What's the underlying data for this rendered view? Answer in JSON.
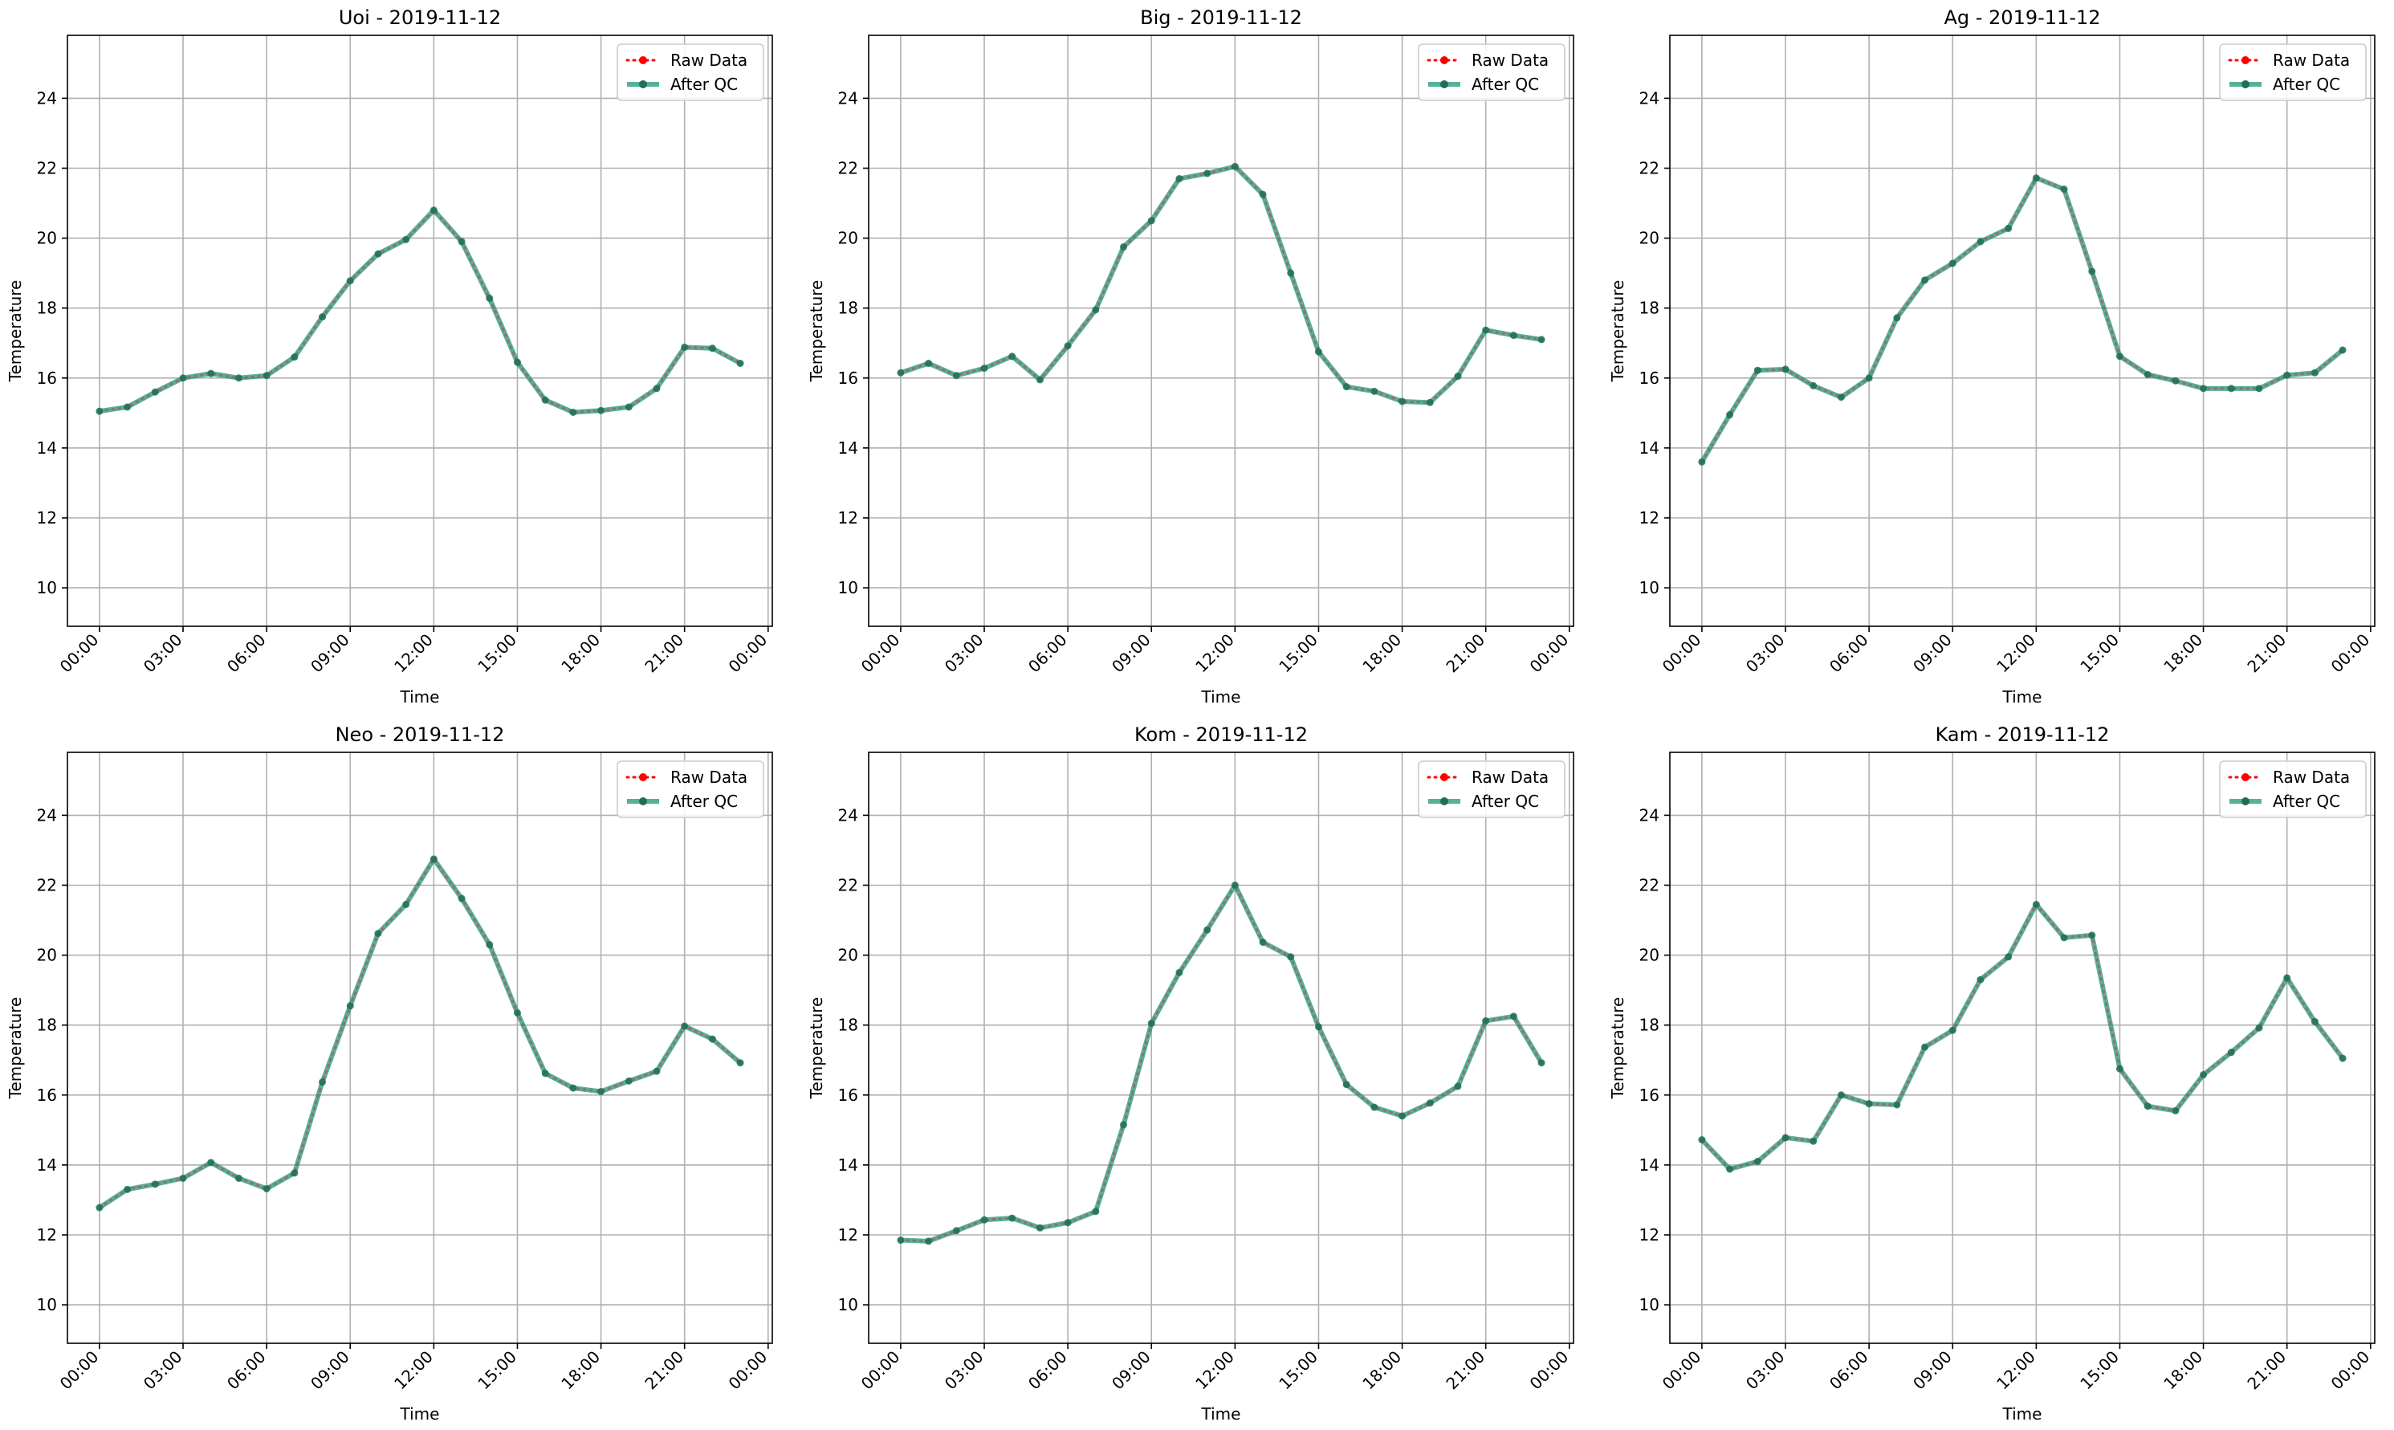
{
  "figure": {
    "colors": {
      "raw": "#ff0000",
      "qc": "#2a9d7f",
      "grid": "#b0b0b0",
      "frame": "#000000"
    },
    "legend_labels": {
      "raw": "Raw Data",
      "qc": "After QC"
    },
    "legend_position": "upper right",
    "grid": true
  },
  "chart_data": [
    {
      "type": "line",
      "title": "Uoi - 2019-11-12",
      "xlabel": "Time",
      "ylabel": "Temperature",
      "ylim": [
        8.9,
        25.8
      ],
      "yticks": [
        10,
        12,
        14,
        16,
        18,
        20,
        22,
        24
      ],
      "xlim": [
        -1.15,
        24.15
      ],
      "xticks": [
        "00:00",
        "03:00",
        "06:00",
        "09:00",
        "12:00",
        "15:00",
        "18:00",
        "21:00",
        "00:00"
      ],
      "x": [
        "00:00",
        "01:00",
        "02:00",
        "03:00",
        "04:00",
        "05:00",
        "06:00",
        "07:00",
        "08:00",
        "09:00",
        "10:00",
        "11:00",
        "12:00",
        "13:00",
        "14:00",
        "15:00",
        "16:00",
        "17:00",
        "18:00",
        "19:00",
        "20:00",
        "21:00",
        "22:00",
        "23:00"
      ],
      "legend": [
        "Raw Data",
        "After QC"
      ],
      "series": [
        {
          "name": "Raw Data",
          "values": [
            15.05,
            15.17,
            15.6,
            16.0,
            16.13,
            16.0,
            16.07,
            16.6,
            17.75,
            18.78,
            19.55,
            19.96,
            20.8,
            19.9,
            18.28,
            16.45,
            15.37,
            15.02,
            15.07,
            15.17,
            15.7,
            16.88,
            16.85,
            16.42
          ]
        },
        {
          "name": "After QC",
          "values": [
            15.05,
            15.17,
            15.6,
            16.0,
            16.13,
            16.0,
            16.07,
            16.6,
            17.75,
            18.78,
            19.55,
            19.96,
            20.8,
            19.9,
            18.28,
            16.45,
            15.37,
            15.02,
            15.07,
            15.17,
            15.7,
            16.88,
            16.85,
            16.42
          ]
        }
      ]
    },
    {
      "type": "line",
      "title": "Big - 2019-11-12",
      "xlabel": "Time",
      "ylabel": "Temperature",
      "ylim": [
        8.9,
        25.8
      ],
      "yticks": [
        10,
        12,
        14,
        16,
        18,
        20,
        22,
        24
      ],
      "xlim": [
        -1.15,
        24.15
      ],
      "xticks": [
        "00:00",
        "03:00",
        "06:00",
        "09:00",
        "12:00",
        "15:00",
        "18:00",
        "21:00",
        "00:00"
      ],
      "x": [
        "00:00",
        "01:00",
        "02:00",
        "03:00",
        "04:00",
        "05:00",
        "06:00",
        "07:00",
        "08:00",
        "09:00",
        "10:00",
        "11:00",
        "12:00",
        "13:00",
        "14:00",
        "15:00",
        "16:00",
        "17:00",
        "18:00",
        "19:00",
        "20:00",
        "21:00",
        "22:00",
        "23:00"
      ],
      "legend": [
        "Raw Data",
        "After QC"
      ],
      "series": [
        {
          "name": "Raw Data",
          "values": [
            16.15,
            16.42,
            16.07,
            16.28,
            16.62,
            15.95,
            16.92,
            17.95,
            19.75,
            20.5,
            21.7,
            21.85,
            22.05,
            21.25,
            19.0,
            16.75,
            15.75,
            15.62,
            15.33,
            15.3,
            16.05,
            17.37,
            17.22,
            17.1
          ]
        },
        {
          "name": "After QC",
          "values": [
            16.15,
            16.42,
            16.07,
            16.28,
            16.62,
            15.95,
            16.92,
            17.95,
            19.75,
            20.5,
            21.7,
            21.85,
            22.05,
            21.25,
            19.0,
            16.75,
            15.75,
            15.62,
            15.33,
            15.3,
            16.05,
            17.37,
            17.22,
            17.1
          ]
        }
      ]
    },
    {
      "type": "line",
      "title": "Ag - 2019-11-12",
      "xlabel": "Time",
      "ylabel": "Temperature",
      "ylim": [
        8.9,
        25.8
      ],
      "yticks": [
        10,
        12,
        14,
        16,
        18,
        20,
        22,
        24
      ],
      "xlim": [
        -1.15,
        24.15
      ],
      "xticks": [
        "00:00",
        "03:00",
        "06:00",
        "09:00",
        "12:00",
        "15:00",
        "18:00",
        "21:00",
        "00:00"
      ],
      "x": [
        "00:00",
        "01:00",
        "02:00",
        "03:00",
        "04:00",
        "05:00",
        "06:00",
        "07:00",
        "08:00",
        "09:00",
        "10:00",
        "11:00",
        "12:00",
        "13:00",
        "14:00",
        "15:00",
        "16:00",
        "17:00",
        "18:00",
        "19:00",
        "20:00",
        "21:00",
        "22:00",
        "23:00"
      ],
      "legend": [
        "Raw Data",
        "After QC"
      ],
      "series": [
        {
          "name": "Raw Data",
          "values": [
            13.6,
            14.95,
            16.22,
            16.25,
            15.78,
            15.45,
            16.0,
            17.72,
            18.8,
            19.28,
            19.9,
            20.28,
            21.72,
            21.4,
            19.05,
            16.62,
            16.1,
            15.92,
            15.7,
            15.7,
            15.7,
            16.08,
            16.15,
            16.8
          ]
        },
        {
          "name": "After QC",
          "values": [
            13.6,
            14.95,
            16.22,
            16.25,
            15.78,
            15.45,
            16.0,
            17.72,
            18.8,
            19.28,
            19.9,
            20.28,
            21.72,
            21.4,
            19.05,
            16.62,
            16.1,
            15.92,
            15.7,
            15.7,
            15.7,
            16.08,
            16.15,
            16.8
          ]
        }
      ]
    },
    {
      "type": "line",
      "title": "Neo - 2019-11-12",
      "xlabel": "Time",
      "ylabel": "Temperature",
      "ylim": [
        8.9,
        25.8
      ],
      "yticks": [
        10,
        12,
        14,
        16,
        18,
        20,
        22,
        24
      ],
      "xlim": [
        -1.15,
        24.15
      ],
      "xticks": [
        "00:00",
        "03:00",
        "06:00",
        "09:00",
        "12:00",
        "15:00",
        "18:00",
        "21:00",
        "00:00"
      ],
      "x": [
        "00:00",
        "01:00",
        "02:00",
        "03:00",
        "04:00",
        "05:00",
        "06:00",
        "07:00",
        "08:00",
        "09:00",
        "10:00",
        "11:00",
        "12:00",
        "13:00",
        "14:00",
        "15:00",
        "16:00",
        "17:00",
        "18:00",
        "19:00",
        "20:00",
        "21:00",
        "22:00",
        "23:00"
      ],
      "legend": [
        "Raw Data",
        "After QC"
      ],
      "series": [
        {
          "name": "Raw Data",
          "values": [
            12.78,
            13.3,
            13.45,
            13.62,
            14.07,
            13.62,
            13.32,
            13.77,
            16.37,
            18.55,
            20.62,
            21.45,
            22.75,
            21.62,
            20.3,
            18.35,
            16.62,
            16.2,
            16.1,
            16.4,
            16.68,
            17.97,
            17.6,
            16.92
          ]
        },
        {
          "name": "After QC",
          "values": [
            12.78,
            13.3,
            13.45,
            13.62,
            14.07,
            13.62,
            13.32,
            13.77,
            16.37,
            18.55,
            20.62,
            21.45,
            22.75,
            21.62,
            20.3,
            18.35,
            16.62,
            16.2,
            16.1,
            16.4,
            16.68,
            17.97,
            17.6,
            16.92
          ]
        }
      ]
    },
    {
      "type": "line",
      "title": "Kom - 2019-11-12",
      "xlabel": "Time",
      "ylabel": "Temperature",
      "ylim": [
        8.9,
        25.8
      ],
      "yticks": [
        10,
        12,
        14,
        16,
        18,
        20,
        22,
        24
      ],
      "xlim": [
        -1.15,
        24.15
      ],
      "xticks": [
        "00:00",
        "03:00",
        "06:00",
        "09:00",
        "12:00",
        "15:00",
        "18:00",
        "21:00",
        "00:00"
      ],
      "x": [
        "00:00",
        "01:00",
        "02:00",
        "03:00",
        "04:00",
        "05:00",
        "06:00",
        "07:00",
        "08:00",
        "09:00",
        "10:00",
        "11:00",
        "12:00",
        "13:00",
        "14:00",
        "15:00",
        "16:00",
        "17:00",
        "18:00",
        "19:00",
        "20:00",
        "21:00",
        "22:00",
        "23:00"
      ],
      "legend": [
        "Raw Data",
        "After QC"
      ],
      "series": [
        {
          "name": "Raw Data",
          "values": [
            11.85,
            11.82,
            12.12,
            12.43,
            12.48,
            12.2,
            12.35,
            12.67,
            15.15,
            18.05,
            19.5,
            20.72,
            22.0,
            20.37,
            19.95,
            17.95,
            16.3,
            15.65,
            15.4,
            15.77,
            16.25,
            18.12,
            18.25,
            16.92
          ]
        },
        {
          "name": "After QC",
          "values": [
            11.85,
            11.82,
            12.12,
            12.43,
            12.48,
            12.2,
            12.35,
            12.67,
            15.15,
            18.05,
            19.5,
            20.72,
            22.0,
            20.37,
            19.95,
            17.95,
            16.3,
            15.65,
            15.4,
            15.77,
            16.25,
            18.12,
            18.25,
            16.92
          ]
        }
      ]
    },
    {
      "type": "line",
      "title": "Kam - 2019-11-12",
      "xlabel": "Time",
      "ylabel": "Temperature",
      "ylim": [
        8.9,
        25.8
      ],
      "yticks": [
        10,
        12,
        14,
        16,
        18,
        20,
        22,
        24
      ],
      "xlim": [
        -1.15,
        24.15
      ],
      "xticks": [
        "00:00",
        "03:00",
        "06:00",
        "09:00",
        "12:00",
        "15:00",
        "18:00",
        "21:00",
        "00:00"
      ],
      "x": [
        "00:00",
        "01:00",
        "02:00",
        "03:00",
        "04:00",
        "05:00",
        "06:00",
        "07:00",
        "08:00",
        "09:00",
        "10:00",
        "11:00",
        "12:00",
        "13:00",
        "14:00",
        "15:00",
        "16:00",
        "17:00",
        "18:00",
        "19:00",
        "20:00",
        "21:00",
        "22:00",
        "23:00"
      ],
      "legend": [
        "Raw Data",
        "After QC"
      ],
      "series": [
        {
          "name": "Raw Data",
          "values": [
            14.72,
            13.88,
            14.1,
            14.78,
            14.68,
            16.0,
            15.75,
            15.72,
            17.37,
            17.85,
            19.3,
            19.95,
            21.45,
            20.5,
            20.57,
            16.75,
            15.68,
            15.55,
            16.58,
            17.22,
            17.92,
            19.35,
            18.1,
            17.05
          ]
        },
        {
          "name": "After QC",
          "values": [
            14.72,
            13.88,
            14.1,
            14.78,
            14.68,
            16.0,
            15.75,
            15.72,
            17.37,
            17.85,
            19.3,
            19.95,
            21.45,
            20.5,
            20.57,
            16.75,
            15.68,
            15.55,
            16.58,
            17.22,
            17.92,
            19.35,
            18.1,
            17.05
          ]
        }
      ]
    }
  ]
}
